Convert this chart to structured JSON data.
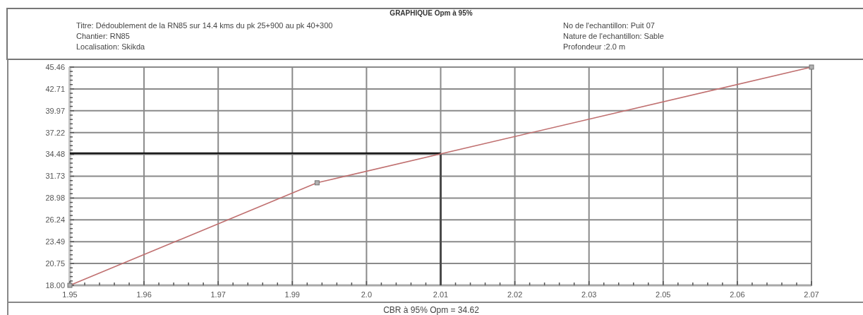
{
  "chart_data": {
    "type": "line",
    "title": "GRAPHIQUE Opm à 95%",
    "annotations": [
      "Titre: Dédoublement de la RN85 sur 14.4 kms du pk 25+900 au pk 40+300",
      "Chantier: RN85",
      "Localisation: Skikda",
      "No de l'echantillon: Puit 07",
      "Nature de l'echantillon: Sable",
      "Profondeur :2.0 m",
      "CBR à 95% Opm = 34.62"
    ],
    "series": [
      {
        "x": [
          1.95,
          1.99,
          2.07
        ],
        "values": [
          18.0,
          30.9,
          45.46
        ],
        "color": "#c07070"
      }
    ],
    "marker": "square",
    "grid": true,
    "xlim": [
      1.95,
      2.07
    ],
    "xticks": [
      1.95,
      {
        "value": 1.9524,
        "label": null
      },
      {
        "value": 1.9548,
        "label": null
      },
      {
        "value": 1.9572,
        "label": null
      },
      {
        "value": 1.9596,
        "label": null
      },
      {
        "value": 1.962,
        "label": "1.96"
      },
      {
        "value": 1.9644,
        "label": null
      },
      {
        "value": 1.9668,
        "label": null
      },
      {
        "value": 1.9692,
        "label": null
      },
      {
        "value": 1.9716,
        "label": null
      },
      {
        "value": 1.974,
        "label": "1.97"
      },
      {
        "value": 1.9764,
        "label": null
      },
      {
        "value": 1.9788,
        "label": null
      },
      {
        "value": 1.9812,
        "label": null
      },
      {
        "value": 1.9836,
        "label": null
      },
      {
        "value": 1.986,
        "label": "1.99"
      },
      {
        "value": 1.9884,
        "label": null
      },
      {
        "value": 1.9908,
        "label": null
      },
      {
        "value": 1.9932,
        "label": null
      },
      {
        "value": 1.9956,
        "label": null
      },
      {
        "value": 1.998,
        "label": "2.0"
      },
      {
        "value": 2.0004,
        "label": null
      },
      {
        "value": 2.0028,
        "label": null
      },
      {
        "value": 2.0052,
        "label": null
      },
      {
        "value": 2.0076,
        "label": null
      },
      2.01,
      {
        "value": 2.0124,
        "label": null
      },
      {
        "value": 2.0148,
        "label": null
      },
      {
        "value": 2.0172,
        "label": null
      },
      {
        "value": 2.0196,
        "label": null
      },
      {
        "value": 2.022,
        "label": "2.02"
      },
      {
        "value": 2.0244,
        "label": null
      },
      {
        "value": 2.0268,
        "label": null
      },
      {
        "value": 2.0292,
        "label": null
      },
      {
        "value": 2.0316,
        "label": null
      },
      {
        "value": 2.034,
        "label": "2.03"
      },
      {
        "value": 2.0364,
        "label": null
      },
      {
        "value": 2.0388,
        "label": null
      },
      {
        "value": 2.0412,
        "label": null
      },
      {
        "value": 2.0436,
        "label": null
      },
      {
        "value": 2.046,
        "label": "2.05"
      },
      {
        "value": 2.0484,
        "label": null
      },
      {
        "value": 2.0508,
        "label": null
      },
      {
        "value": 2.0532,
        "label": null
      },
      {
        "value": 2.0556,
        "label": null
      },
      {
        "value": 2.058,
        "label": "2.06"
      },
      {
        "value": 2.0604,
        "label": null
      },
      {
        "value": 2.0628,
        "label": null
      },
      {
        "value": 2.0652,
        "label": null
      },
      {
        "value": 2.0676,
        "label": null
      },
      2.07
    ],
    "ylim": [
      18.0,
      45.46
    ],
    "yticks": [
      {
        "value": 18,
        "label": "18.00"
      },
      {
        "value": 18.5492,
        "label": null
      },
      {
        "value": 19.0984,
        "label": null
      },
      {
        "value": 19.6476,
        "label": null
      },
      {
        "value": 20.1968,
        "label": null
      },
      {
        "value": 20.746,
        "label": "20.75"
      },
      {
        "value": 21.2952,
        "label": null
      },
      {
        "value": 21.8444,
        "label": null
      },
      {
        "value": 22.3936,
        "label": null
      },
      {
        "value": 22.9428,
        "label": null
      },
      {
        "value": 23.492,
        "label": "23.49"
      },
      {
        "value": 24.0412,
        "label": null
      },
      {
        "value": 24.5904,
        "label": null
      },
      {
        "value": 25.1396,
        "label": null
      },
      {
        "value": 25.6888,
        "label": null
      },
      {
        "value": 26.238,
        "label": "26.24"
      },
      {
        "value": 26.7872,
        "label": null
      },
      {
        "value": 27.3364,
        "label": null
      },
      {
        "value": 27.8856,
        "label": null
      },
      {
        "value": 28.4348,
        "label": null
      },
      {
        "value": 28.984,
        "label": "28.98"
      },
      {
        "value": 29.5332,
        "label": null
      },
      {
        "value": 30.0824,
        "label": null
      },
      {
        "value": 30.6316,
        "label": null
      },
      {
        "value": 31.1808,
        "label": null
      },
      31.73,
      {
        "value": 32.2792,
        "label": null
      },
      {
        "value": 32.8284,
        "label": null
      },
      {
        "value": 33.3776,
        "label": null
      },
      {
        "value": 33.9268,
        "label": null
      },
      {
        "value": 34.476,
        "label": "34.48"
      },
      {
        "value": 35.0252,
        "label": null
      },
      {
        "value": 35.5744,
        "label": null
      },
      {
        "value": 36.1236,
        "label": null
      },
      {
        "value": 36.6728,
        "label": null
      },
      {
        "value": 37.222,
        "label": "37.22"
      },
      {
        "value": 37.7712,
        "label": null
      },
      {
        "value": 38.3204,
        "label": null
      },
      {
        "value": 38.8696,
        "label": null
      },
      {
        "value": 39.4188,
        "label": null
      },
      {
        "value": 39.968,
        "label": "39.97"
      },
      {
        "value": 40.5172,
        "label": null
      },
      {
        "value": 41.0664,
        "label": null
      },
      {
        "value": 41.6156,
        "label": null
      },
      {
        "value": 42.1648,
        "label": null
      },
      {
        "value": 42.714,
        "label": "42.71"
      },
      {
        "value": 43.2632,
        "label": null
      },
      {
        "value": 43.8124,
        "label": null
      },
      {
        "value": 44.3616,
        "label": null
      },
      {
        "value": 44.9108,
        "label": null
      },
      45.46
    ],
    "ref_lines": [
      {
        "axis": "x",
        "value": 2.01,
        "color": "#4a4a4a"
      },
      {
        "axis": "y",
        "value": 34.62,
        "color": "#1a1a1a"
      }
    ]
  }
}
